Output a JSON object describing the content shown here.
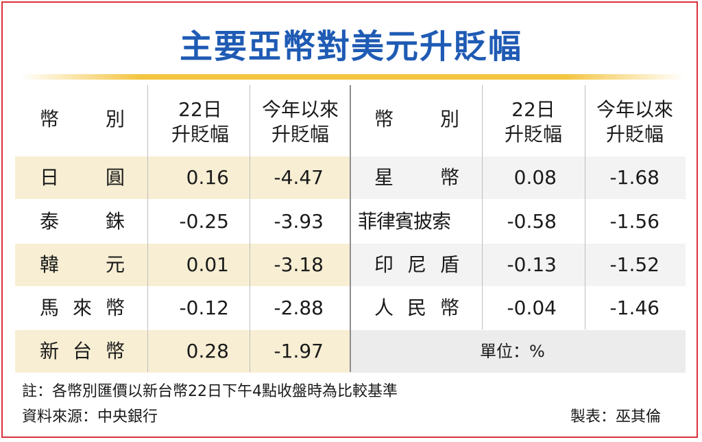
{
  "title": "主要亞幣對美元升貶幅",
  "header": {
    "currency": "幣　　別",
    "currency_chars": [
      "幣",
      "別"
    ],
    "day_change_line1": "22日",
    "day_change_line2": "升貶幅",
    "ytd_line1": "今年以來",
    "ytd_line2": "升貶幅"
  },
  "left_rows": [
    {
      "name_chars": [
        "日",
        "圓"
      ],
      "day": "0.16",
      "ytd": "-4.47"
    },
    {
      "name_chars": [
        "泰",
        "銖"
      ],
      "day": "-0.25",
      "ytd": "-3.93"
    },
    {
      "name_chars": [
        "韓",
        "元"
      ],
      "day": "0.01",
      "ytd": "-3.18"
    },
    {
      "name_chars": [
        "馬",
        "來",
        "幣"
      ],
      "day": "-0.12",
      "ytd": "-2.88"
    },
    {
      "name_chars": [
        "新",
        "台",
        "幣"
      ],
      "day": "0.28",
      "ytd": "-1.97"
    }
  ],
  "right_rows": [
    {
      "name_chars": [
        "星",
        "幣"
      ],
      "day": "0.08",
      "ytd": "-1.68"
    },
    {
      "name_chars": [
        "菲律賓披索"
      ],
      "day": "-0.58",
      "ytd": "-1.56"
    },
    {
      "name_chars": [
        "印",
        "尼",
        "盾"
      ],
      "day": "-0.13",
      "ytd": "-1.52"
    },
    {
      "name_chars": [
        "人",
        "民",
        "幣"
      ],
      "day": "-0.04",
      "ytd": "-1.46"
    }
  ],
  "unit": "單位：%",
  "note": "註：各幣別匯價以新台幣22日下午4點收盤時為比較基準",
  "source": "資料來源：中央銀行",
  "author": "製表：巫其倫",
  "colors": {
    "title": "#1f5bb4",
    "frame": "#d9303a",
    "rule": "#f4c542",
    "band_left": "#f7eed3",
    "band_right": "#f3f3f3"
  }
}
